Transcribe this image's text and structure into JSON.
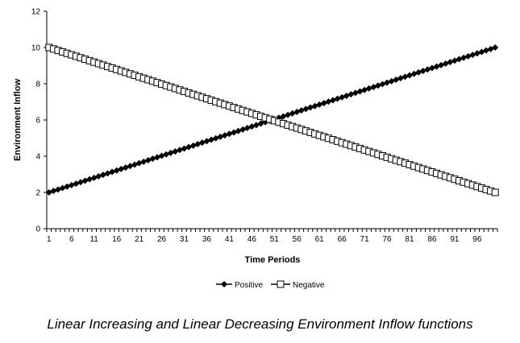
{
  "caption": "Linear Increasing and Linear Decreasing Environment Inflow functions",
  "chart_data": {
    "type": "line",
    "xlabel": "Time Periods",
    "ylabel": "Environment  Inflow",
    "ylim": [
      0,
      12
    ],
    "yticks": [
      0,
      2,
      4,
      6,
      8,
      10,
      12
    ],
    "xlim": [
      1,
      100
    ],
    "xtick_labels": [
      "1",
      "6",
      "11",
      "16",
      "21",
      "26",
      "31",
      "36",
      "41",
      "46",
      "51",
      "56",
      "61",
      "66",
      "71",
      "76",
      "81",
      "86",
      "91",
      "96"
    ],
    "grid": false,
    "legend": "bottom",
    "series": [
      {
        "name": "Positive",
        "marker": "filled-diamond",
        "color": "#000000",
        "x_start": 1,
        "x_end": 100,
        "y_start": 2,
        "y_end": 10
      },
      {
        "name": "Negative",
        "marker": "open-square",
        "color": "#000000",
        "x_start": 1,
        "x_end": 100,
        "y_start": 10,
        "y_end": 2
      }
    ]
  }
}
